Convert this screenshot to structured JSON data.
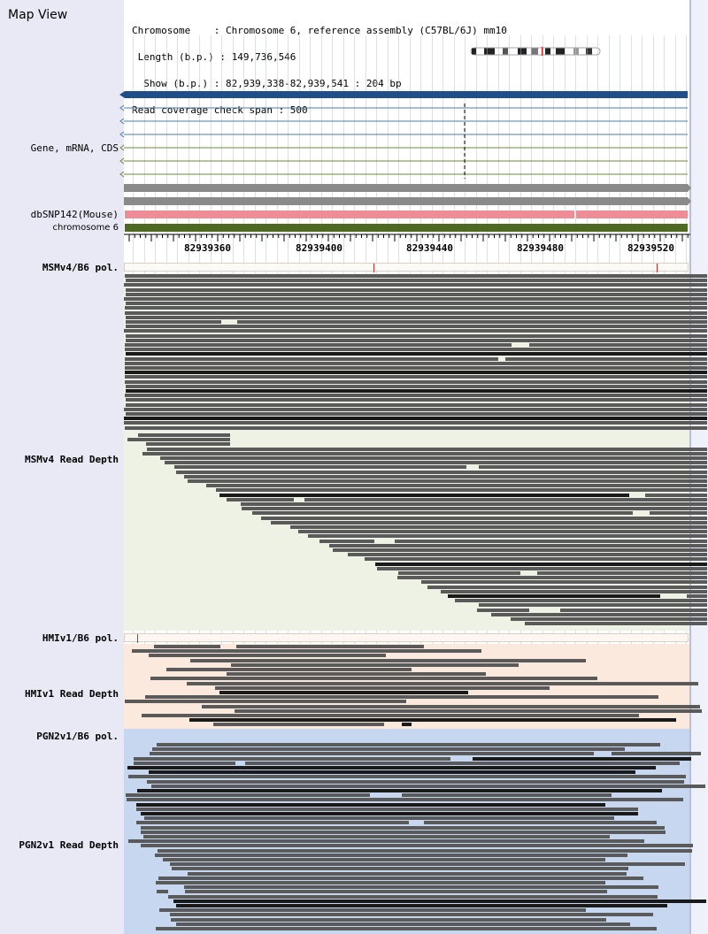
{
  "map_view_title": "Map View",
  "info": {
    "chromosome_line": "Chromosome    : Chromosome 6, reference assembly (C57BL/6J) mm10",
    "length_line": " Length (b.p.) : 149,736,546",
    "show_line": "  Show (b.p.) : 82,939,338-82,939,541 : 204 bp",
    "coverage_line": "Read coverage check span : 500"
  },
  "tracks": {
    "gene_label": "Gene, mRNA, CDS",
    "dbsnp_label": "dbSNP142(Mouse)",
    "chromosome_label": "chromosome 6",
    "msm_pol_label": "MSMv4/B6 pol.",
    "msm_depth_label": "MSMv4 Read Depth",
    "hmi_pol_label": "HMIv1/B6 pol.",
    "hmi_depth_label": "HMIv1 Read Depth",
    "pgn_pol_label": "PGN2v1/B6 pol.",
    "pgn_depth_label": "PGN2v1 Read Depth"
  },
  "ruler": {
    "labels": [
      "82939360",
      "82939400",
      "82939440",
      "82939480",
      "82939520"
    ],
    "positions_bp": [
      82939360,
      82939400,
      82939440,
      82939480,
      82939520
    ],
    "view_start_bp": 82939338,
    "view_end_bp": 82939541
  },
  "colors": {
    "gene_main": "#1f4e88",
    "transcript": "#4a7fa8",
    "dbsnp": "#f08c96",
    "chromosome": "#4e6a22",
    "msm_bg": "#eef2e4",
    "hmi_bg": "#fbe9de",
    "pgn_bg": "#c7d7ef",
    "read": "#5a5a5a",
    "read_dark": "#1a1a1a",
    "variant_tick": "#c43030"
  },
  "icons": {
    "track_arrow": "left-chevron-icon",
    "ideogram": "chromosome-ideogram"
  }
}
